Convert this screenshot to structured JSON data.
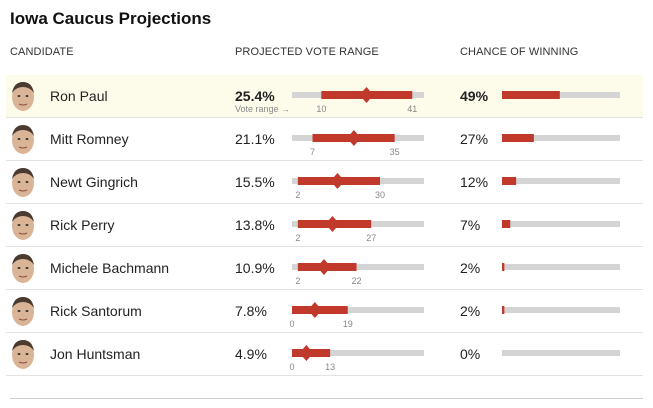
{
  "title": "Iowa Caucus Projections",
  "headers": {
    "candidate": "CANDIDATE",
    "vote_range": "PROJECTED VOTE RANGE",
    "chance": "CHANCE OF WINNING"
  },
  "vote_range_label": "Vote range →",
  "colors": {
    "bar": "#c0392b",
    "track": "#d4d4d4",
    "highlight_row": "#fdfcea"
  },
  "chart_data": {
    "type": "table",
    "title": "Iowa Caucus Projections",
    "vote_axis_range": [
      0,
      45
    ],
    "chance_axis_range": [
      0,
      100
    ],
    "rows": [
      {
        "candidate": "Ron Paul",
        "projected_vote": 25.4,
        "projected_vote_label": "25.4%",
        "range_low": 10,
        "range_high": 41,
        "range_low_label": "10",
        "range_high_label": "41",
        "chance": 49,
        "chance_label": "49%",
        "highlight": true
      },
      {
        "candidate": "Mitt Romney",
        "projected_vote": 21.1,
        "projected_vote_label": "21.1%",
        "range_low": 7,
        "range_high": 35,
        "range_low_label": "7",
        "range_high_label": "35",
        "chance": 27,
        "chance_label": "27%",
        "highlight": false
      },
      {
        "candidate": "Newt Gingrich",
        "projected_vote": 15.5,
        "projected_vote_label": "15.5%",
        "range_low": 2,
        "range_high": 30,
        "range_low_label": "2",
        "range_high_label": "30",
        "chance": 12,
        "chance_label": "12%",
        "highlight": false
      },
      {
        "candidate": "Rick Perry",
        "projected_vote": 13.8,
        "projected_vote_label": "13.8%",
        "range_low": 2,
        "range_high": 27,
        "range_low_label": "2",
        "range_high_label": "27",
        "chance": 7,
        "chance_label": "7%",
        "highlight": false
      },
      {
        "candidate": "Michele Bachmann",
        "projected_vote": 10.9,
        "projected_vote_label": "10.9%",
        "range_low": 2,
        "range_high": 22,
        "range_low_label": "2",
        "range_high_label": "22",
        "chance": 2,
        "chance_label": "2%",
        "highlight": false
      },
      {
        "candidate": "Rick Santorum",
        "projected_vote": 7.8,
        "projected_vote_label": "7.8%",
        "range_low": 0,
        "range_high": 19,
        "range_low_label": "0",
        "range_high_label": "19",
        "chance": 2,
        "chance_label": "2%",
        "highlight": false
      },
      {
        "candidate": "Jon Huntsman",
        "projected_vote": 4.9,
        "projected_vote_label": "4.9%",
        "range_low": 0,
        "range_high": 13,
        "range_low_label": "0",
        "range_high_label": "13",
        "chance": 0,
        "chance_label": "0%",
        "highlight": false
      }
    ]
  }
}
